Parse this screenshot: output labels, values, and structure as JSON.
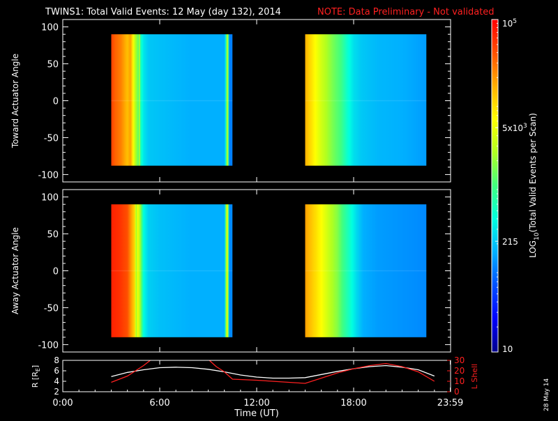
{
  "header": {
    "title": "TWINS1: Total Valid Events: 12 May (day 132), 2014",
    "note": "NOTE: Data Preliminary - Not validated"
  },
  "side_date": "28 May 14",
  "colors": {
    "background": "#000000",
    "axis": "#ffffff",
    "note": "#ff2020",
    "r_line": "#ffffff",
    "lshell_line": "#ff2020",
    "colormap": [
      "#00008c",
      "#0000ff",
      "#0050ff",
      "#00b0ff",
      "#00ffe0",
      "#40ff80",
      "#b0ff20",
      "#ffff00",
      "#ffb000",
      "#ff5000",
      "#ff0000"
    ]
  },
  "chart_data": [
    {
      "type": "heatmap",
      "ylabel": "Toward Actuator Angle",
      "ylim": [
        -110,
        110
      ],
      "yticks": [
        -100,
        -50,
        0,
        50,
        100
      ],
      "xlim_hours": [
        0,
        24
      ],
      "segments": [
        {
          "start": "3:00",
          "end": "10:30",
          "angle_range": [
            -88,
            90
          ],
          "profile": [
            [
              3.0,
              0.92
            ],
            [
              3.25,
              0.88
            ],
            [
              3.6,
              0.85
            ],
            [
              4.0,
              0.78
            ],
            [
              4.2,
              0.82
            ],
            [
              4.3,
              0.74
            ],
            [
              4.5,
              0.6
            ],
            [
              4.7,
              0.52
            ],
            [
              4.75,
              0.62
            ],
            [
              4.8,
              0.45
            ],
            [
              5.0,
              0.37
            ],
            [
              5.3,
              0.33
            ],
            [
              6.0,
              0.32
            ],
            [
              8.0,
              0.3
            ],
            [
              10.0,
              0.3
            ],
            [
              10.1,
              0.42
            ],
            [
              10.2,
              0.7
            ],
            [
              10.3,
              0.25
            ],
            [
              10.5,
              0.25
            ]
          ]
        },
        {
          "start": "15:00",
          "end": "22:30",
          "angle_range": [
            -88,
            90
          ],
          "profile": [
            [
              15.0,
              0.8
            ],
            [
              15.5,
              0.72
            ],
            [
              16.0,
              0.64
            ],
            [
              16.7,
              0.55
            ],
            [
              17.2,
              0.5
            ],
            [
              17.4,
              0.46
            ],
            [
              17.6,
              0.42
            ],
            [
              18.0,
              0.36
            ],
            [
              18.5,
              0.33
            ],
            [
              19.5,
              0.31
            ],
            [
              21.0,
              0.3
            ],
            [
              22.5,
              0.28
            ]
          ]
        }
      ]
    },
    {
      "type": "heatmap",
      "ylabel": "Away Actuator Angle",
      "ylim": [
        -110,
        110
      ],
      "yticks": [
        -100,
        -50,
        0,
        50,
        100
      ],
      "xlim_hours": [
        0,
        24
      ],
      "segments": [
        {
          "start": "3:00",
          "end": "10:30",
          "angle_range": [
            -90,
            90
          ],
          "profile": [
            [
              3.0,
              0.96
            ],
            [
              3.5,
              0.94
            ],
            [
              4.0,
              0.9
            ],
            [
              4.3,
              0.8
            ],
            [
              4.45,
              0.75
            ],
            [
              4.55,
              0.55
            ],
            [
              4.6,
              0.7
            ],
            [
              4.8,
              0.58
            ],
            [
              5.0,
              0.4
            ],
            [
              5.3,
              0.34
            ],
            [
              6.0,
              0.32
            ],
            [
              8.0,
              0.3
            ],
            [
              10.0,
              0.3
            ],
            [
              10.1,
              0.55
            ],
            [
              10.2,
              0.72
            ],
            [
              10.3,
              0.26
            ],
            [
              10.5,
              0.26
            ]
          ]
        },
        {
          "start": "15:00",
          "end": "22:30",
          "angle_range": [
            -90,
            90
          ],
          "profile": [
            [
              15.0,
              0.82
            ],
            [
              15.5,
              0.76
            ],
            [
              16.0,
              0.7
            ],
            [
              16.5,
              0.62
            ],
            [
              17.0,
              0.56
            ],
            [
              17.3,
              0.5
            ],
            [
              17.6,
              0.45
            ],
            [
              17.9,
              0.4
            ],
            [
              18.2,
              0.35
            ],
            [
              18.6,
              0.3
            ],
            [
              19.5,
              0.28
            ],
            [
              21.0,
              0.27
            ],
            [
              22.5,
              0.26
            ]
          ]
        }
      ]
    },
    {
      "type": "colorbar",
      "label": "LOG10(Total Valid Events per Scan)",
      "scale": "log",
      "range": [
        10,
        100000
      ],
      "ticks": [
        {
          "label": "10",
          "value": 10
        },
        {
          "label": "215",
          "value": 215
        },
        {
          "label": "5x10^3",
          "value": 5000
        },
        {
          "label": "10^5",
          "value": 100000
        }
      ]
    },
    {
      "type": "line",
      "xlabel": "Time (UT)",
      "ylabel_left": "R [RE]",
      "ylabel_right": "L Shell",
      "xlim_hours": [
        0,
        24
      ],
      "ylim_left": [
        2,
        8
      ],
      "ylim_right": [
        0,
        30
      ],
      "xticks": [
        {
          "label": "0:00",
          "value": 0
        },
        {
          "label": "6:00",
          "value": 6
        },
        {
          "label": "12:00",
          "value": 12
        },
        {
          "label": "18:00",
          "value": 18
        },
        {
          "label": "23:59",
          "value": 23.98
        }
      ],
      "yticks_left": [
        2,
        4,
        6,
        8
      ],
      "yticks_right": [
        0,
        10,
        20,
        30
      ],
      "series": [
        {
          "axis": "left",
          "x": [
            3,
            4,
            5,
            6,
            7,
            8,
            9,
            10,
            11,
            12,
            13,
            14,
            15,
            16,
            17,
            18,
            19,
            20,
            21,
            22,
            23
          ],
          "y": [
            4.9,
            5.7,
            6.2,
            6.6,
            6.7,
            6.6,
            6.3,
            5.8,
            5.2,
            4.8,
            4.6,
            4.6,
            4.7,
            5.3,
            5.9,
            6.4,
            6.8,
            7.0,
            6.7,
            6.2,
            5.0
          ]
        },
        {
          "axis": "right",
          "x": [
            3,
            4,
            5,
            5.5,
            9,
            9.5,
            10,
            10.5,
            12,
            15,
            16,
            17,
            18,
            19,
            20,
            21,
            22,
            23
          ],
          "y": [
            9,
            15,
            25,
            31,
            31,
            24,
            19,
            12,
            11,
            8,
            13,
            18,
            22,
            25,
            27,
            24,
            19,
            10
          ]
        }
      ]
    }
  ]
}
